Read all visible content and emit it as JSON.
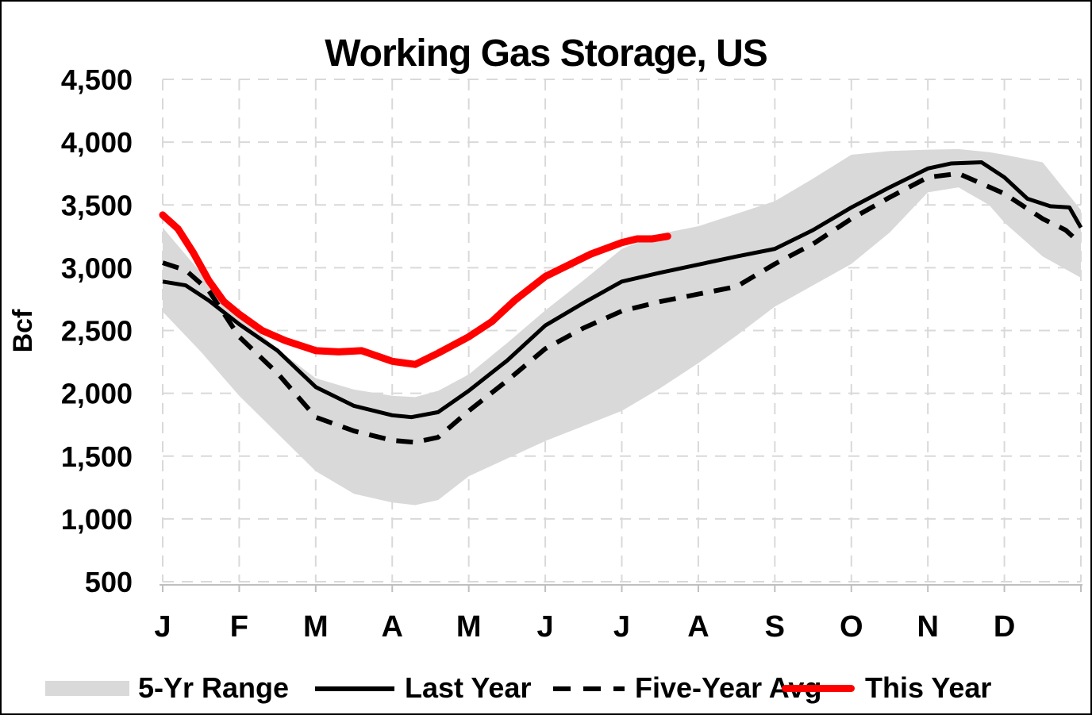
{
  "title": "Working Gas Storage, US",
  "colors": {
    "this_year": "#FF0000",
    "last_year": "#000000",
    "five_year_avg": "#000000",
    "range_band": "#D9D9D9",
    "gridline": "#D9D9D9",
    "axis_line": "#BFBFBF",
    "text": "#000000"
  },
  "legend": {
    "items": [
      {
        "label": "5-Yr Range",
        "swatch": "band"
      },
      {
        "label": "Last Year",
        "swatch": "solid"
      },
      {
        "label": "Five-Year Avg",
        "swatch": "dashed"
      },
      {
        "label": "This Year",
        "swatch": "red"
      }
    ]
  },
  "chart_data": {
    "type": "line",
    "title": "Working Gas Storage, US",
    "xlabel": "",
    "ylabel": "Bcf",
    "ylim": [
      500,
      4500
    ],
    "ytick_values": [
      500,
      1000,
      1500,
      2000,
      2500,
      3000,
      3500,
      4000,
      4500
    ],
    "ytick_labels": [
      "500",
      "1,000",
      "1,500",
      "2,000",
      "2,500",
      "3,000",
      "3,500",
      "4,000",
      "4,500"
    ],
    "x_months": [
      "J",
      "F",
      "M",
      "A",
      "M",
      "J",
      "J",
      "A",
      "S",
      "O",
      "N",
      "D"
    ],
    "x_month_span": 12,
    "grid": true,
    "legend_position": "bottom",
    "series": [
      {
        "name": "5-Yr Range",
        "type": "band",
        "color": "#D9D9D9",
        "x": [
          0,
          0.5,
          1,
          1.5,
          2,
          2.5,
          3,
          3.3,
          3.6,
          4,
          4.5,
          5,
          5.5,
          6,
          6.5,
          7,
          7.5,
          8,
          8.5,
          9,
          9.5,
          10,
          10.4,
          10.8,
          11,
          11.5,
          12
        ],
        "high": [
          3320,
          2960,
          2630,
          2350,
          2120,
          2030,
          1980,
          1970,
          2020,
          2150,
          2400,
          2660,
          2900,
          3150,
          3270,
          3330,
          3430,
          3530,
          3710,
          3900,
          3930,
          3940,
          3945,
          3920,
          3900,
          3840,
          3460
        ],
        "low": [
          2650,
          2330,
          1980,
          1680,
          1380,
          1200,
          1130,
          1110,
          1150,
          1340,
          1480,
          1620,
          1740,
          1860,
          2040,
          2240,
          2460,
          2690,
          2860,
          3030,
          3280,
          3600,
          3640,
          3500,
          3360,
          3090,
          2920
        ]
      },
      {
        "name": "Last Year",
        "type": "line",
        "style": "solid",
        "color": "#000000",
        "x": [
          0,
          0.3,
          0.6,
          1,
          1.5,
          2,
          2.5,
          3,
          3.25,
          3.6,
          4,
          4.5,
          5,
          5.5,
          6,
          6.5,
          7,
          7.5,
          8,
          8.5,
          9,
          9.5,
          10,
          10.3,
          10.7,
          11,
          11.3,
          11.6,
          11.85,
          12
        ],
        "values": [
          2890,
          2860,
          2740,
          2550,
          2340,
          2050,
          1900,
          1825,
          1810,
          1850,
          2020,
          2260,
          2540,
          2720,
          2890,
          2960,
          3025,
          3090,
          3150,
          3300,
          3480,
          3640,
          3790,
          3830,
          3840,
          3720,
          3550,
          3490,
          3480,
          3320
        ]
      },
      {
        "name": "Five-Year Avg",
        "type": "line",
        "style": "dashed",
        "color": "#000000",
        "x": [
          0,
          0.3,
          0.6,
          1,
          1.5,
          2,
          2.5,
          3,
          3.3,
          3.6,
          4,
          4.5,
          5,
          5.5,
          6,
          6.5,
          7,
          7.5,
          8,
          8.5,
          9,
          9.5,
          10,
          10.4,
          11,
          11.5,
          11.8,
          12
        ],
        "values": [
          3040,
          2980,
          2820,
          2450,
          2160,
          1810,
          1700,
          1625,
          1610,
          1650,
          1860,
          2100,
          2355,
          2520,
          2655,
          2730,
          2790,
          2850,
          3030,
          3190,
          3390,
          3560,
          3720,
          3750,
          3590,
          3390,
          3300,
          3190
        ]
      },
      {
        "name": "This Year",
        "type": "line",
        "style": "solid-thick",
        "color": "#FF0000",
        "x": [
          0,
          0.2,
          0.4,
          0.6,
          0.8,
          1,
          1.3,
          1.6,
          2,
          2.3,
          2.6,
          3,
          3.3,
          3.6,
          4,
          4.3,
          4.6,
          5,
          5.3,
          5.6,
          6,
          6.2,
          6.4,
          6.6
        ],
        "values": [
          3420,
          3310,
          3120,
          2900,
          2730,
          2630,
          2500,
          2420,
          2340,
          2330,
          2340,
          2255,
          2230,
          2320,
          2450,
          2570,
          2740,
          2930,
          3020,
          3110,
          3200,
          3230,
          3230,
          3250
        ]
      }
    ]
  }
}
